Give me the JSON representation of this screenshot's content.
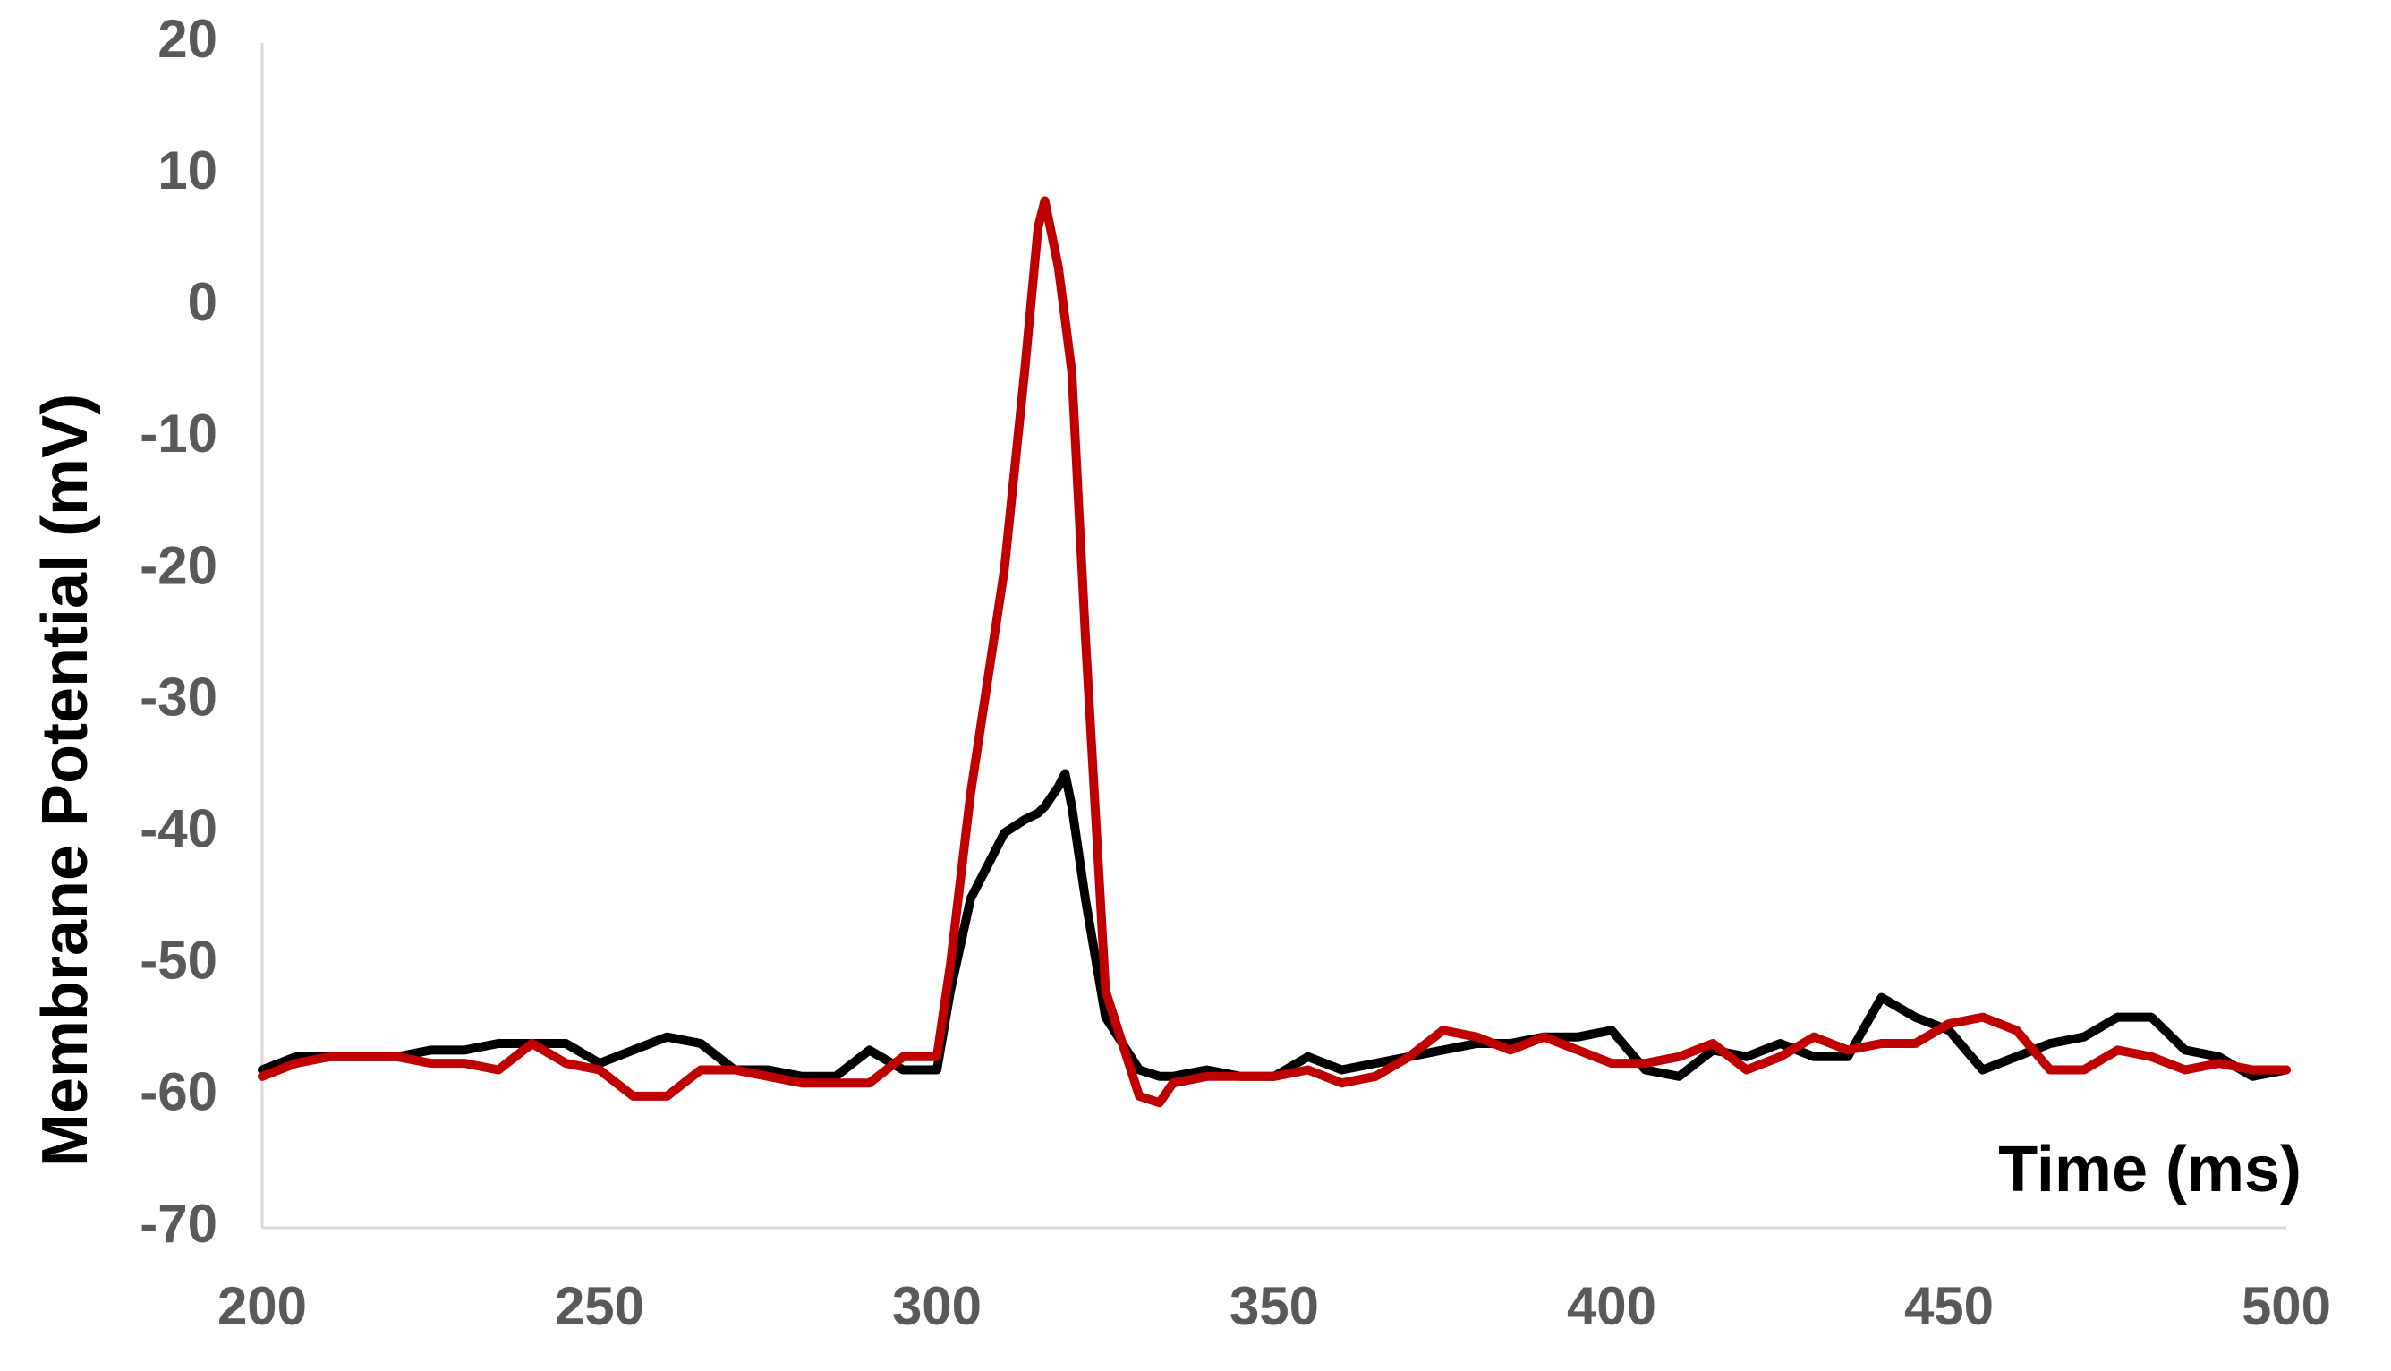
{
  "chart_data": {
    "type": "line",
    "y_label": "Membrane Potential (mV)",
    "x_label": "Time (ms)",
    "x": [
      200,
      205,
      210,
      215,
      220,
      225,
      230,
      235,
      240,
      245,
      250,
      255,
      260,
      265,
      270,
      275,
      280,
      285,
      290,
      295,
      300,
      302,
      305,
      310,
      313,
      315,
      316,
      318,
      319,
      320,
      322,
      325,
      330,
      333,
      335,
      340,
      345,
      350,
      355,
      360,
      365,
      370,
      375,
      380,
      385,
      390,
      395,
      400,
      405,
      410,
      415,
      420,
      425,
      430,
      435,
      440,
      445,
      450,
      455,
      460,
      465,
      470,
      475,
      480,
      485,
      490,
      495,
      500
    ],
    "series": [
      {
        "color": "#000000",
        "values": [
          -58,
          -57,
          -57,
          -57,
          -57,
          -56.5,
          -56.5,
          -56,
          -56,
          -56,
          -57.5,
          -56.5,
          -55.5,
          -56,
          -58,
          -58,
          -58.5,
          -58.5,
          -56.5,
          -58,
          -58,
          -52,
          -45,
          -40,
          -39,
          -38.5,
          -38,
          -36.5,
          -35.5,
          -38,
          -45,
          -54,
          -58,
          -58.5,
          -58.5,
          -58,
          -58.5,
          -58.5,
          -57,
          -58,
          -57.5,
          -57,
          -56.5,
          -56,
          -56,
          -55.5,
          -55.5,
          -55,
          -58,
          -58.5,
          -56.5,
          -57,
          -56,
          -57,
          -57,
          -52.5,
          -54,
          -55,
          -58,
          -57,
          -56,
          -55.5,
          -54,
          -54,
          -56.5,
          -57,
          -58.5,
          -58
        ]
      },
      {
        "color": "#c00000",
        "values": [
          -58.5,
          -57.5,
          -57,
          -57,
          -57,
          -57.5,
          -57.5,
          -58,
          -56,
          -57.5,
          -58,
          -60,
          -60,
          -58,
          -58,
          -58.5,
          -59,
          -59,
          -59,
          -57,
          -57,
          -50,
          -37,
          -20,
          -5,
          6,
          8,
          3,
          -1,
          -5,
          -25,
          -52,
          -60,
          -60.5,
          -59,
          -58.5,
          -58.5,
          -58.5,
          -58,
          -59,
          -58.5,
          -57,
          -55,
          -55.5,
          -56.5,
          -55.5,
          -56.5,
          -57.5,
          -57.5,
          -57,
          -56,
          -58,
          -57,
          -55.5,
          -56.5,
          -56,
          -56,
          -54.5,
          -54,
          -55,
          -58,
          -58,
          -56.5,
          -57,
          -58,
          -57.5,
          -58,
          -58
        ]
      }
    ],
    "xlim": [
      200,
      500
    ],
    "ylim": [
      -70,
      20
    ],
    "xticks": [
      200,
      250,
      300,
      350,
      400,
      450,
      500
    ],
    "yticks": [
      -70,
      -60,
      -50,
      -40,
      -30,
      -20,
      -10,
      0,
      10,
      20
    ],
    "grid": false
  }
}
